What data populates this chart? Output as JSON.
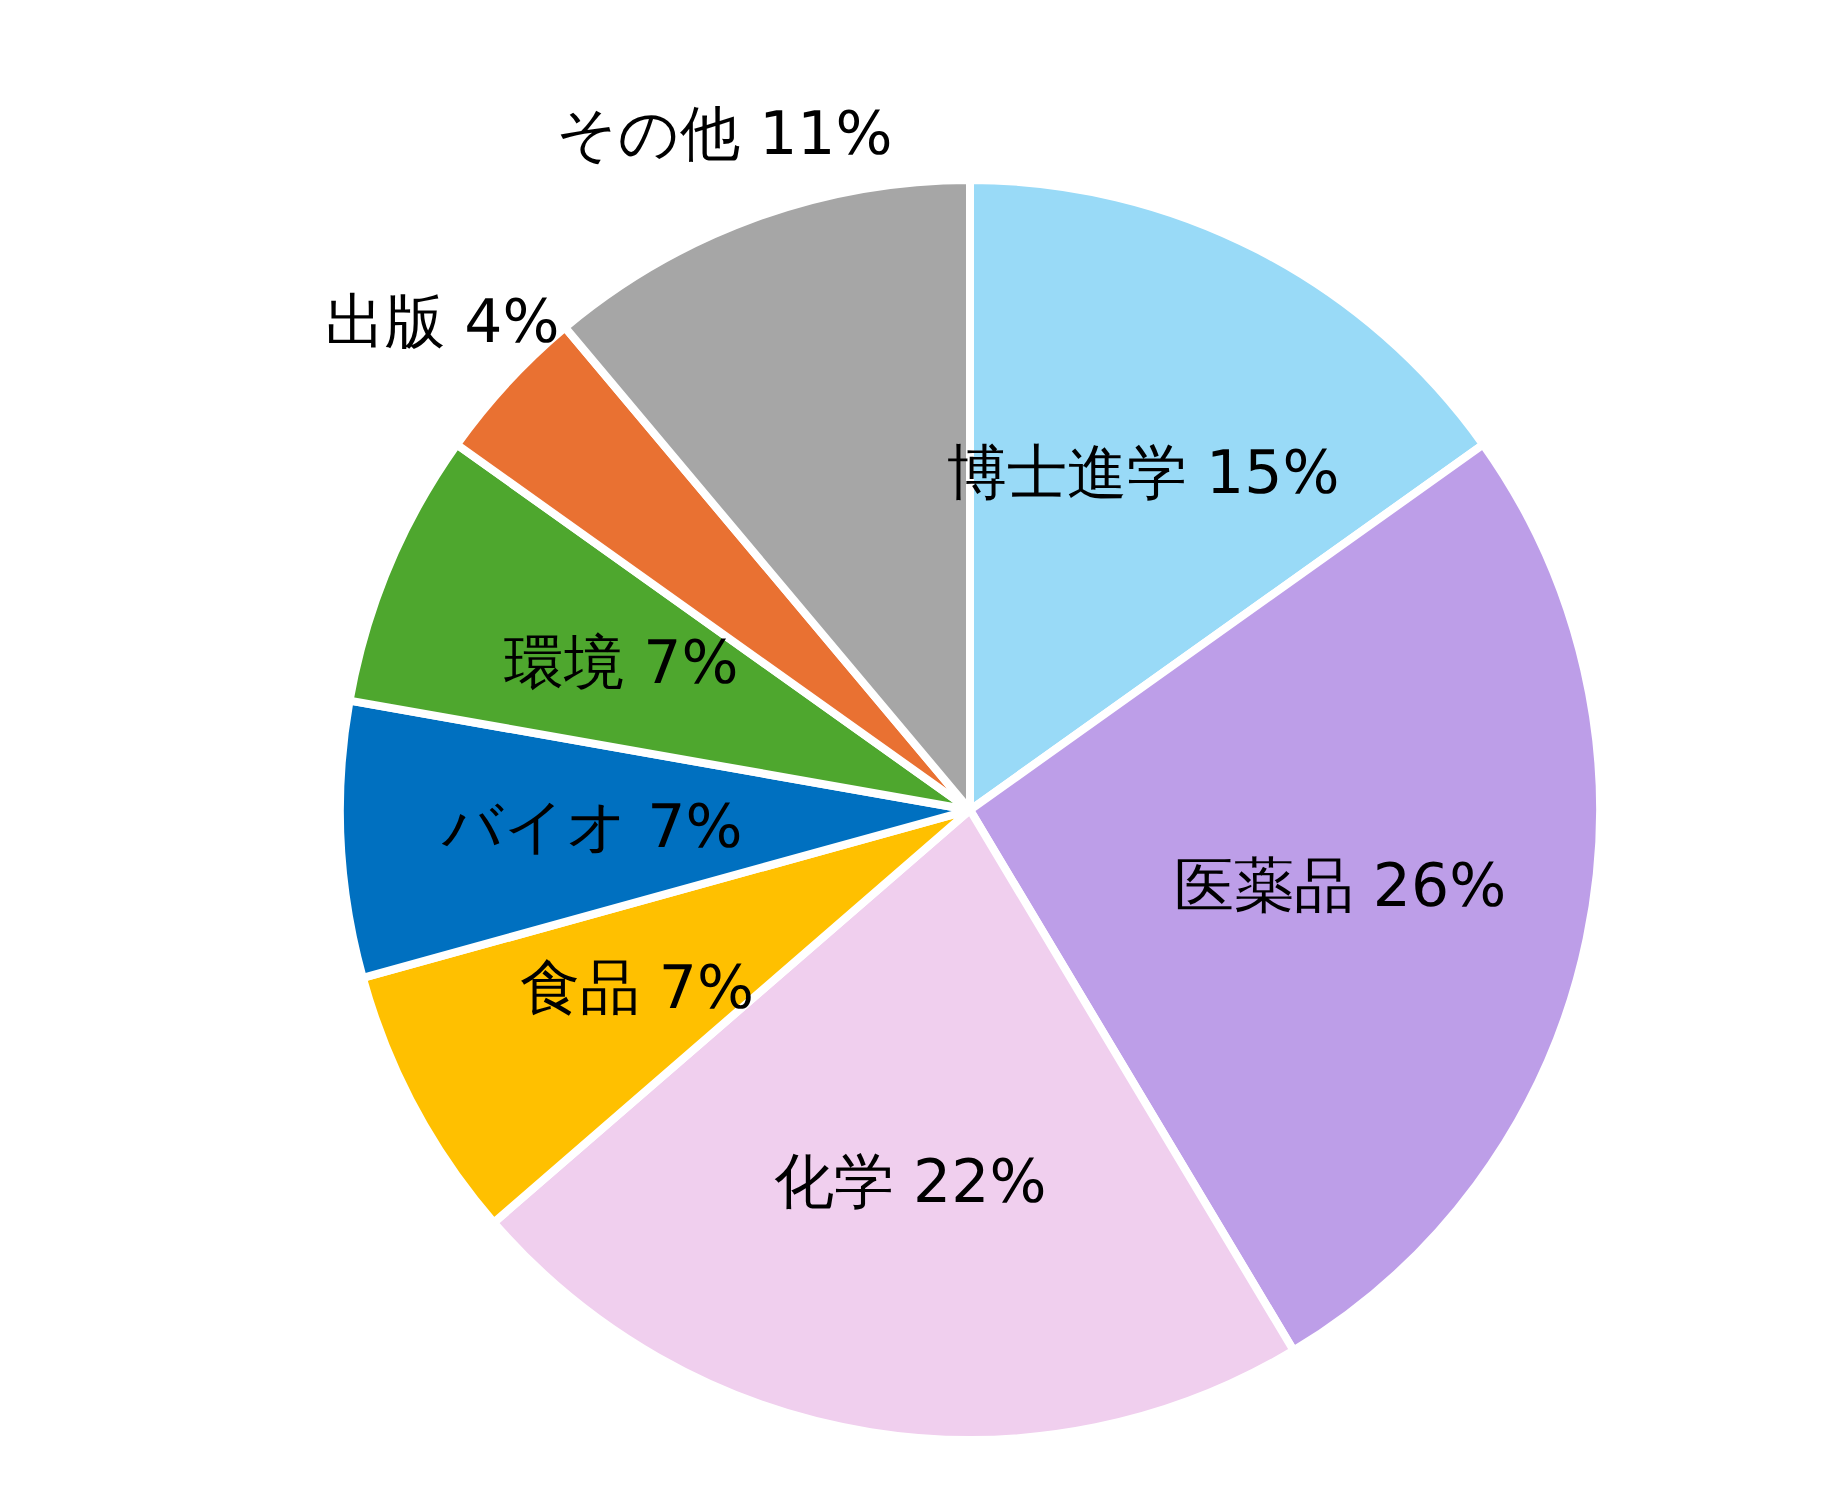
{
  "chart_data": {
    "type": "pie",
    "categories": [
      "博士進学",
      "医薬品",
      "化学",
      "食品",
      "バイオ",
      "環境",
      "出版",
      "その他"
    ],
    "values": [
      15,
      26,
      22,
      7,
      7,
      7,
      4,
      11
    ],
    "value_labels": [
      "15%",
      "26%",
      "22%",
      "7%",
      "7%",
      "7%",
      "4%",
      "11%"
    ],
    "colors": [
      "#99daf7",
      "#bd9ee8",
      "#f0cfee",
      "#ffc000",
      "#0070c0",
      "#4ea72e",
      "#e97132",
      "#a6a6a6"
    ],
    "legend": false
  }
}
